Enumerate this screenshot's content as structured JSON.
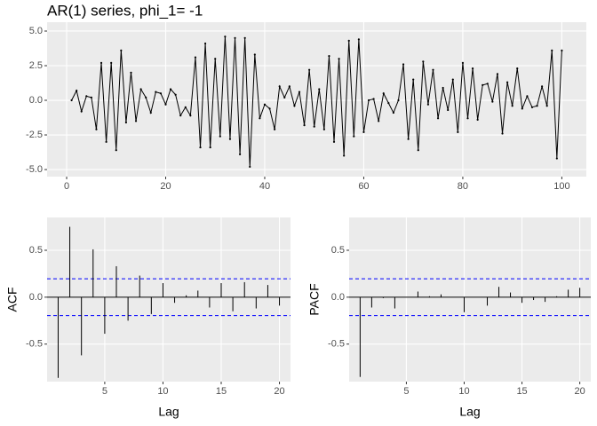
{
  "chart_data": [
    {
      "type": "line",
      "title": "AR(1) series, phi_1= -1",
      "color": "#000000",
      "x": [
        1,
        2,
        3,
        4,
        5,
        6,
        7,
        8,
        9,
        10,
        11,
        12,
        13,
        14,
        15,
        16,
        17,
        18,
        19,
        20,
        21,
        22,
        23,
        24,
        25,
        26,
        27,
        28,
        29,
        30,
        31,
        32,
        33,
        34,
        35,
        36,
        37,
        38,
        39,
        40,
        41,
        42,
        43,
        44,
        45,
        46,
        47,
        48,
        49,
        50,
        51,
        52,
        53,
        54,
        55,
        56,
        57,
        58,
        59,
        60,
        61,
        62,
        63,
        64,
        65,
        66,
        67,
        68,
        69,
        70,
        71,
        72,
        73,
        74,
        75,
        76,
        77,
        78,
        79,
        80,
        81,
        82,
        83,
        84,
        85,
        86,
        87,
        88,
        89,
        90,
        91,
        92,
        93,
        94,
        95,
        96,
        97,
        98,
        99,
        100
      ],
      "values": [
        0.0,
        0.7,
        -0.8,
        0.3,
        0.2,
        -2.1,
        2.7,
        -3.0,
        2.7,
        -3.6,
        3.6,
        -1.6,
        2.0,
        -1.5,
        0.8,
        0.2,
        -0.9,
        0.6,
        0.5,
        -0.3,
        0.8,
        0.4,
        -1.1,
        -0.5,
        -1.1,
        3.1,
        -3.4,
        4.1,
        -3.4,
        3.0,
        -2.6,
        4.6,
        -2.8,
        4.5,
        -3.9,
        4.5,
        -4.8,
        3.3,
        -1.3,
        -0.3,
        -0.6,
        -2.1,
        1.0,
        0.2,
        1.0,
        -0.4,
        0.6,
        -1.8,
        2.2,
        -1.9,
        0.8,
        -2.1,
        3.2,
        -3.0,
        3.0,
        -4.0,
        4.3,
        -2.6,
        4.4,
        -2.3,
        0.0,
        0.1,
        -1.5,
        0.5,
        -0.2,
        -0.9,
        0.0,
        2.6,
        -2.8,
        1.5,
        -3.6,
        2.8,
        -0.3,
        2.2,
        -1.3,
        0.9,
        -0.7,
        1.5,
        -2.3,
        2.7,
        -1.3,
        2.3,
        -1.4,
        1.1,
        1.2,
        -0.1,
        1.9,
        -2.4,
        1.3,
        -0.4,
        2.3,
        -0.6,
        0.3,
        -0.5,
        -0.4,
        1.0,
        -0.4,
        3.6,
        -4.2,
        3.6
      ],
      "xlim": [
        -3.95,
        104.95
      ],
      "xticks": [
        0,
        20,
        40,
        60,
        80,
        100
      ],
      "ylim": [
        -5.51,
        5.64
      ],
      "yticks": [
        {
          "value": -5,
          "label": "-5.0"
        },
        -2.5,
        {
          "value": 0,
          "label": "0.0"
        },
        2.5,
        {
          "value": 5,
          "label": "5.0"
        }
      ],
      "grid": true
    },
    {
      "type": "bar",
      "x_label": "Lag",
      "y_label": "ACF",
      "color": "#000000",
      "x": [
        1,
        2,
        3,
        4,
        5,
        6,
        7,
        8,
        9,
        10,
        11,
        12,
        13,
        14,
        15,
        16,
        17,
        18,
        19,
        20
      ],
      "values": [
        -0.86,
        0.75,
        -0.62,
        0.51,
        -0.39,
        0.33,
        -0.25,
        0.23,
        -0.18,
        0.15,
        -0.06,
        0.02,
        0.07,
        -0.11,
        0.15,
        -0.15,
        0.16,
        -0.12,
        0.13,
        -0.09
      ],
      "reference_lines": [
        0.196,
        -0.196
      ],
      "reference_color": "#0000FF",
      "xlim": [
        0.05,
        20.95
      ],
      "xticks": [
        5,
        10,
        15,
        20
      ],
      "ylim": [
        -0.9,
        0.85
      ],
      "yticks": [
        -0.5,
        {
          "value": 0,
          "label": "0.0"
        },
        0.5
      ],
      "grid": true
    },
    {
      "type": "bar",
      "x_label": "Lag",
      "y_label": "PACF",
      "color": "#000000",
      "x": [
        1,
        2,
        3,
        4,
        5,
        6,
        7,
        8,
        9,
        10,
        11,
        12,
        13,
        14,
        15,
        16,
        17,
        18,
        19,
        20
      ],
      "values": [
        -0.85,
        -0.11,
        -0.01,
        -0.12,
        0.0,
        0.06,
        0.01,
        0.03,
        0.0,
        -0.16,
        0.0,
        -0.09,
        0.11,
        0.05,
        -0.06,
        -0.03,
        -0.05,
        0.01,
        0.08,
        0.1
      ],
      "reference_lines": [
        0.196,
        -0.196
      ],
      "reference_color": "#0000FF",
      "xlim": [
        0.05,
        20.95
      ],
      "xticks": [
        5,
        10,
        15,
        20
      ],
      "ylim": [
        -0.9,
        0.85
      ],
      "yticks": [
        -0.5,
        {
          "value": 0,
          "label": "0.0"
        },
        0.5
      ],
      "grid": true
    }
  ]
}
